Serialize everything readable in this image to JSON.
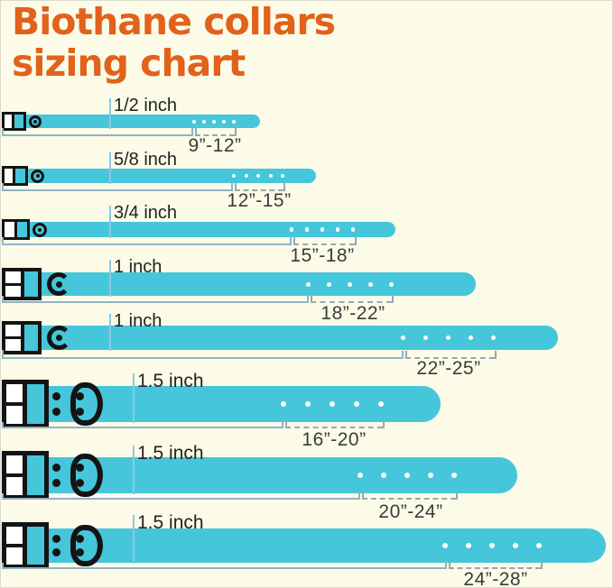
{
  "title": {
    "line1": "Biothane collars",
    "line2": "sizing chart"
  },
  "collars": [
    {
      "width_label": "1/2 inch",
      "range_label": "9”-12”",
      "holes": 5,
      "buckle": "small-buckle-icon"
    },
    {
      "width_label": "5/8 inch",
      "range_label": "12”-15”",
      "holes": 5,
      "buckle": "small-buckle-icon"
    },
    {
      "width_label": "3/4 inch",
      "range_label": "15”-18”",
      "holes": 5,
      "buckle": "small-buckle-icon"
    },
    {
      "width_label": "1 inch",
      "range_label": "18”-22”",
      "holes": 5,
      "buckle": "medium-buckle-icon"
    },
    {
      "width_label": "1 inch",
      "range_label": "22”-25”",
      "holes": 5,
      "buckle": "medium-buckle-icon"
    },
    {
      "width_label": "1.5 inch",
      "range_label": "16”-20”",
      "holes": 5,
      "buckle": "large-buckle-icon"
    },
    {
      "width_label": "1.5 inch",
      "range_label": "20”-24”",
      "holes": 5,
      "buckle": "large-buckle-icon"
    },
    {
      "width_label": "1.5 inch",
      "range_label": "24”-28”",
      "holes": 5,
      "buckle": "large-buckle-icon"
    }
  ],
  "chart_data": {
    "type": "table",
    "title": "Biothane collars sizing chart",
    "columns": [
      "collar_width",
      "neck_size_range"
    ],
    "rows": [
      [
        "1/2 inch",
        "9”-12”"
      ],
      [
        "5/8 inch",
        "12”-15”"
      ],
      [
        "3/4 inch",
        "15”-18”"
      ],
      [
        "1 inch",
        "18”-22”"
      ],
      [
        "1 inch",
        "22”-25”"
      ],
      [
        "1.5 inch",
        "16”-20”"
      ],
      [
        "1.5 inch",
        "20”-24”"
      ],
      [
        "1.5 inch",
        "24”-28”"
      ]
    ]
  },
  "colors": {
    "background": "#FBFBE8",
    "title_orange": "#E2611B",
    "strap_turquoise": "#45C6DA",
    "buckle_black": "#141414",
    "hole_white": "#FFFFFF",
    "bracket_blue": "#8FB3C7",
    "bracket_gray_dashed": "#97A8B0",
    "label_tick_blue": "#8FC7E0",
    "width_label_text": "#222222",
    "range_label_text": "#3B3B3B"
  }
}
